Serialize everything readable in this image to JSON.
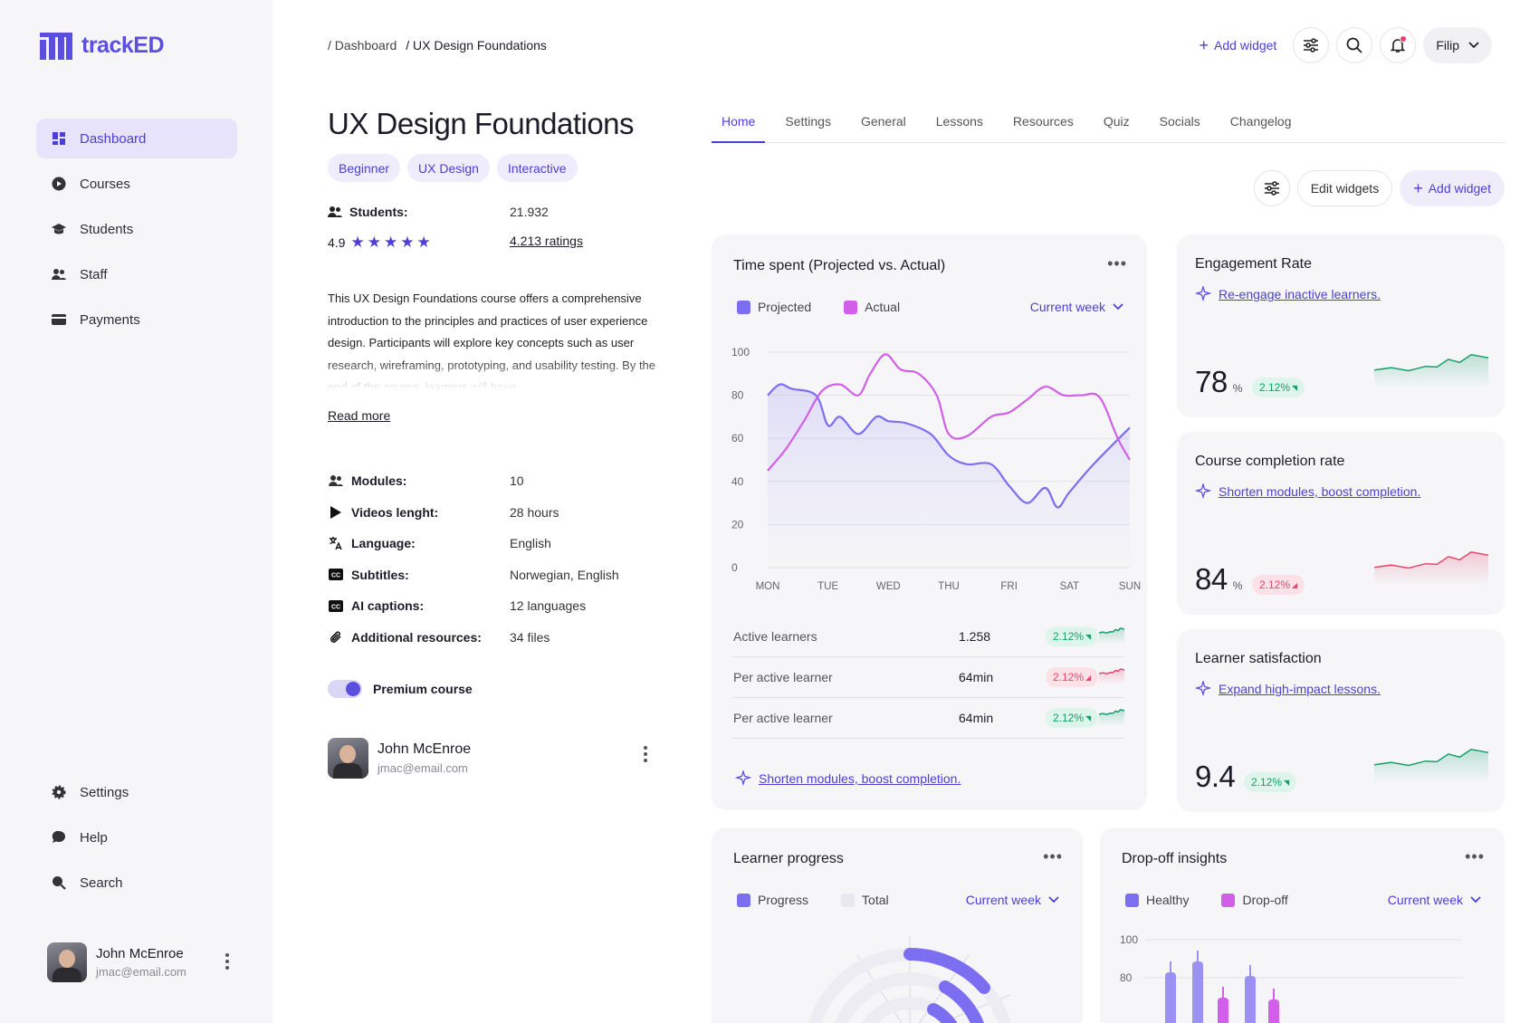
{
  "app": {
    "name": "trackED"
  },
  "sidebar": {
    "nav": [
      {
        "label": "Dashboard",
        "icon": "grid-icon",
        "active": true
      },
      {
        "label": "Courses",
        "icon": "play-circle-icon"
      },
      {
        "label": "Students",
        "icon": "graduation-cap-icon"
      },
      {
        "label": "Staff",
        "icon": "users-icon"
      },
      {
        "label": "Payments",
        "icon": "credit-card-icon"
      }
    ],
    "bottom_nav": [
      {
        "label": "Settings",
        "icon": "gear-icon"
      },
      {
        "label": "Help",
        "icon": "chat-bubble-icon"
      },
      {
        "label": "Search",
        "icon": "search-icon"
      }
    ],
    "user": {
      "name": "John McEnroe",
      "email": "jmac@email.com"
    }
  },
  "topbar": {
    "breadcrumb": [
      "/ Dashboard",
      "/ UX Design Foundations"
    ],
    "add_widget": "Add widget",
    "user_menu": "Filip"
  },
  "course": {
    "title": "UX Design Foundations",
    "tags": [
      "Beginner",
      "UX Design",
      "Interactive"
    ],
    "students_label": "Students:",
    "students_value": "21.932",
    "rating": "4.9",
    "stars": 5,
    "ratings_count": "4.213 ratings",
    "description": "This UX Design Foundations course offers a comprehensive introduction to the principles and practices of user experience design. Participants will explore key concepts such as user research, wireframing, prototyping, and usability testing. By the end of the course, learners will have",
    "read_more": "Read more",
    "details": [
      {
        "label": "Modules:",
        "value": "10",
        "icon": "users-icon"
      },
      {
        "label": "Videos lenght:",
        "value": "28 hours",
        "icon": "play-icon"
      },
      {
        "label": "Language:",
        "value": "English",
        "icon": "translate-icon"
      },
      {
        "label": "Subtitles:",
        "value": "Norwegian, English",
        "icon": "cc-icon"
      },
      {
        "label": "AI captions:",
        "value": "12 languages",
        "icon": "cc-icon"
      },
      {
        "label": "Additional resources:",
        "value": "34 files",
        "icon": "paperclip-icon"
      }
    ],
    "premium_label": "Premium course",
    "premium_enabled": true,
    "owner": {
      "name": "John McEnroe",
      "email": "jmac@email.com"
    }
  },
  "tabs": [
    "Home",
    "Settings",
    "General",
    "Lessons",
    "Resources",
    "Quiz",
    "Socials",
    "Changelog"
  ],
  "widget_actions": {
    "edit": "Edit widgets",
    "add": "Add widget"
  },
  "time_card": {
    "title": "Time spent (Projected vs. Actual)",
    "period": "Current week",
    "metrics": [
      {
        "label": "Active learners",
        "value": "1.258",
        "change": "2.12%",
        "trend": "up"
      },
      {
        "label": "Per active learner",
        "value": "64min",
        "change": "2.12%",
        "trend": "down"
      },
      {
        "label": "Per active learner",
        "value": "64min",
        "change": "2.12%",
        "trend": "up"
      }
    ],
    "ai_link": "Shorten modules, boost completion."
  },
  "kpis": [
    {
      "title": "Engagement Rate",
      "link": "Re-engage inactive learners.",
      "value": "78",
      "unit": "%",
      "change": "2.12%",
      "trend": "up"
    },
    {
      "title": "Course completion rate",
      "link": "Shorten modules, boost completion.",
      "value": "84",
      "unit": "%",
      "change": "2.12%",
      "trend": "down"
    },
    {
      "title": "Learner satisfaction",
      "link": "Expand high-impact lessons.",
      "value": "9.4",
      "unit": "",
      "change": "2.12%",
      "trend": "up"
    }
  ],
  "progress_card": {
    "title": "Learner progress",
    "period": "Current week"
  },
  "dropoff_card": {
    "title": "Drop-off insights",
    "period": "Current week"
  },
  "colors": {
    "accent": "#5b4fe0",
    "actual": "#d15fe8",
    "up": "#14a06a",
    "down": "#e5466c"
  },
  "chart_data": [
    {
      "type": "line",
      "title": "Time spent (Projected vs. Actual)",
      "categories": [
        "MON",
        "TUE",
        "WED",
        "THU",
        "FRI",
        "SAT",
        "SUN"
      ],
      "ylim": [
        0,
        100
      ],
      "yticks": [
        0,
        20,
        40,
        60,
        80,
        100
      ],
      "grid": true,
      "legend": "top-left",
      "series": [
        {
          "name": "Projected",
          "color": "#7b6ef0",
          "x": [
            0,
            0.2,
            0.4,
            0.8,
            1,
            1.2,
            1.5,
            1.8,
            2,
            2.3,
            2.7,
            3,
            3.3,
            3.7,
            4,
            4.3,
            4.6,
            4.8,
            5,
            5.4,
            6
          ],
          "values": [
            80,
            85,
            83,
            80,
            66,
            70,
            62,
            70,
            68,
            67,
            62,
            52,
            48,
            48,
            38,
            30,
            37,
            28,
            35,
            48,
            65
          ]
        },
        {
          "name": "Actual",
          "color": "#d15fe8",
          "x": [
            0,
            0.3,
            0.6,
            0.9,
            1.2,
            1.5,
            1.7,
            1.95,
            2.2,
            2.5,
            2.8,
            3,
            3.3,
            3.7,
            4,
            4.3,
            4.6,
            4.9,
            5.2,
            5.5,
            5.8,
            6
          ],
          "values": [
            45,
            55,
            68,
            82,
            85,
            80,
            90,
            99,
            92,
            90,
            80,
            62,
            61,
            70,
            72,
            78,
            84,
            80,
            80,
            79,
            60,
            50
          ]
        }
      ]
    },
    {
      "type": "radial",
      "title": "Learner progress",
      "series": [
        {
          "name": "Progress"
        },
        {
          "name": "Total"
        }
      ]
    },
    {
      "type": "bar",
      "title": "Drop-off insights",
      "yticks": [
        80,
        100
      ],
      "series": [
        {
          "name": "Healthy"
        },
        {
          "name": "Drop-off"
        }
      ]
    }
  ]
}
